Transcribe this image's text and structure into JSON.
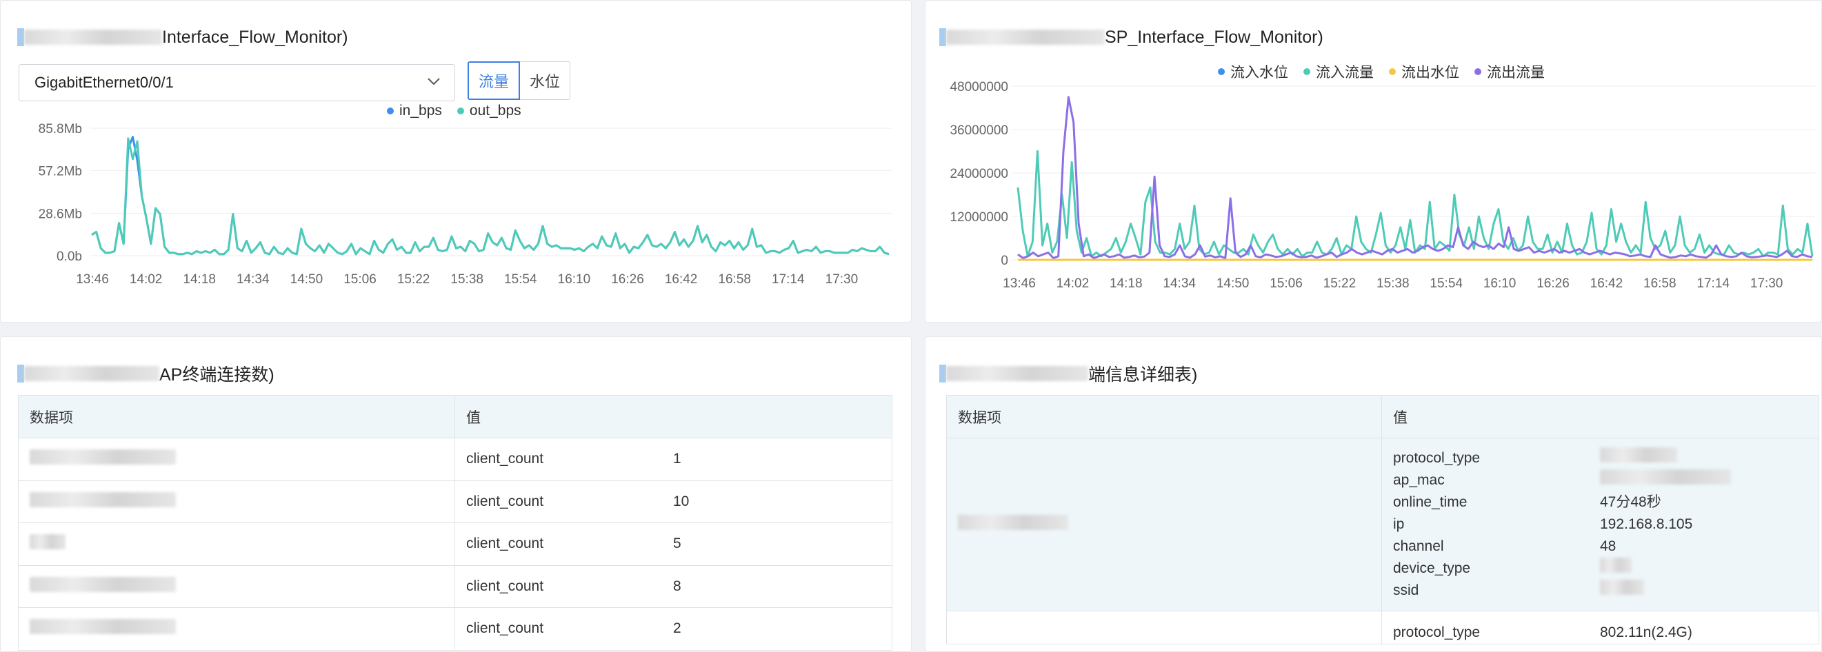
{
  "panels": {
    "traffic": {
      "title_suffix": "Interface_Flow_Monitor)",
      "interface_select": "GigabitEthernet0/0/1",
      "toggle_traffic": "流量",
      "toggle_waterline": "水位",
      "legend": [
        "in_bps",
        "out_bps"
      ],
      "colors": {
        "in_bps": "#3e8ef0",
        "out_bps": "#4ecbb6"
      }
    },
    "ssp": {
      "title_suffix": "SP_Interface_Flow_Monitor)",
      "legend": [
        "流入水位",
        "流入流量",
        "流出水位",
        "流出流量"
      ],
      "colors": {
        "流入水位": "#3e8ef0",
        "流入流量": "#4ecbb6",
        "流出水位": "#f5c842",
        "流出流量": "#8b6ee8"
      }
    },
    "ap_clients": {
      "title_suffix": "AP终端连接数)",
      "headers": [
        "数据项",
        "值"
      ],
      "rows": [
        {
          "key": "client_count",
          "value": "1"
        },
        {
          "key": "client_count",
          "value": "10"
        },
        {
          "key": "client_count",
          "value": "5"
        },
        {
          "key": "client_count",
          "value": "8"
        },
        {
          "key": "client_count",
          "value": "2"
        }
      ]
    },
    "terminal_detail": {
      "title_suffix": "端信息详细表)",
      "headers": [
        "数据项",
        "值"
      ],
      "record1": {
        "keys": [
          "protocol_type",
          "ap_mac",
          "online_time",
          "ip",
          "channel",
          "device_type",
          "ssid"
        ],
        "values": [
          "",
          "",
          "47分48秒",
          "192.168.8.105",
          "48",
          "",
          ""
        ]
      },
      "record2": {
        "keys": [
          "protocol_type"
        ],
        "values": [
          "802.11n(2.4G)"
        ]
      }
    }
  },
  "chart_data": [
    {
      "type": "line",
      "title": "",
      "y_ticks": [
        "0.0b",
        "28.6Mb",
        "57.2Mb",
        "85.8Mb"
      ],
      "ylim": [
        0,
        85.8
      ],
      "x_ticks": [
        "13:46",
        "14:02",
        "14:18",
        "14:34",
        "14:50",
        "15:06",
        "15:22",
        "15:38",
        "15:54",
        "16:10",
        "16:26",
        "16:42",
        "16:58",
        "17:14",
        "17:30"
      ],
      "series": [
        {
          "name": "in_bps",
          "values": [
            14,
            16,
            5,
            2,
            2,
            3,
            22,
            8,
            72,
            80,
            64,
            40,
            25,
            8,
            32,
            28,
            6,
            2,
            2,
            1,
            1,
            2,
            1,
            3,
            2,
            3,
            2,
            4,
            1,
            1,
            4,
            28,
            5,
            3,
            10,
            2,
            5,
            9,
            2,
            1,
            6,
            2,
            1,
            5,
            2,
            1,
            18,
            8,
            5,
            3,
            7,
            2,
            8,
            5,
            2,
            1,
            3,
            8,
            1,
            5,
            3,
            1,
            10,
            4,
            2,
            8,
            11,
            4,
            6,
            2,
            2,
            9,
            3,
            6,
            6,
            12,
            4,
            3,
            4,
            13,
            5,
            6,
            3,
            10,
            8,
            3,
            4,
            15,
            9,
            7,
            12,
            5,
            4,
            17,
            10,
            5,
            7,
            4,
            8,
            20,
            8,
            6,
            7,
            5,
            5,
            5,
            4,
            5,
            3,
            6,
            8,
            5,
            13,
            7,
            6,
            15,
            5,
            8,
            2,
            6,
            5,
            9,
            14,
            7,
            6,
            8,
            5,
            9,
            16,
            7,
            11,
            6,
            10,
            20,
            9,
            14,
            6,
            3,
            9,
            7,
            10,
            5,
            9,
            4,
            7,
            18,
            6,
            7,
            2,
            3,
            3,
            2,
            4,
            5,
            10,
            2,
            3,
            4,
            3,
            6,
            2,
            3,
            3,
            2,
            2,
            2,
            2,
            4,
            3,
            5,
            4,
            3,
            3,
            6,
            2,
            1
          ]
        },
        {
          "name": "out_bps",
          "values": [
            14,
            16,
            5,
            2,
            2,
            3,
            22,
            8,
            79,
            65,
            77,
            40,
            25,
            8,
            32,
            28,
            6,
            2,
            2,
            1,
            1,
            2,
            1,
            3,
            2,
            3,
            2,
            4,
            1,
            1,
            4,
            28,
            5,
            3,
            10,
            2,
            5,
            9,
            2,
            1,
            6,
            2,
            1,
            5,
            2,
            1,
            18,
            8,
            5,
            3,
            7,
            2,
            8,
            5,
            2,
            1,
            3,
            8,
            1,
            5,
            3,
            1,
            10,
            4,
            2,
            8,
            11,
            4,
            6,
            2,
            2,
            9,
            3,
            6,
            6,
            12,
            4,
            3,
            4,
            13,
            5,
            6,
            3,
            10,
            8,
            3,
            4,
            15,
            9,
            7,
            12,
            5,
            4,
            17,
            10,
            5,
            7,
            4,
            8,
            20,
            8,
            6,
            7,
            5,
            5,
            5,
            4,
            5,
            3,
            6,
            8,
            5,
            13,
            7,
            6,
            15,
            5,
            8,
            2,
            6,
            5,
            9,
            14,
            7,
            6,
            8,
            5,
            9,
            16,
            7,
            11,
            6,
            10,
            20,
            9,
            14,
            6,
            3,
            9,
            7,
            10,
            5,
            9,
            4,
            7,
            18,
            6,
            7,
            2,
            3,
            3,
            2,
            4,
            5,
            10,
            2,
            3,
            4,
            3,
            6,
            2,
            3,
            3,
            2,
            2,
            2,
            2,
            4,
            3,
            5,
            4,
            3,
            3,
            6,
            2,
            1
          ]
        }
      ]
    },
    {
      "type": "line",
      "title": "",
      "y_ticks": [
        "0",
        "12000000",
        "24000000",
        "36000000",
        "48000000"
      ],
      "ylim": [
        0,
        48000000
      ],
      "x_ticks": [
        "13:46",
        "14:02",
        "14:18",
        "14:34",
        "14:50",
        "15:06",
        "15:22",
        "15:38",
        "15:54",
        "16:10",
        "16:26",
        "16:42",
        "16:58",
        "17:14",
        "17:30"
      ],
      "series": [
        {
          "name": "流入水位",
          "values": [
            0,
            0,
            0,
            0,
            0,
            0,
            0,
            0,
            0,
            0
          ]
        },
        {
          "name": "流入流量",
          "values": [
            20000000,
            8000000,
            1000000,
            5000000,
            30000000,
            4000000,
            10000000,
            2000000,
            5000000,
            18000000,
            6000000,
            27000000,
            8000000,
            2000000,
            6000000,
            1000000,
            2000000,
            1000000,
            2000000,
            3000000,
            6000000,
            2000000,
            5000000,
            10000000,
            6000000,
            1500000,
            16000000,
            20000000,
            5000000,
            2000000,
            2000000,
            1500000,
            3000000,
            10000000,
            3000000,
            5000000,
            15000000,
            3000000,
            1500000,
            2000000,
            5000000,
            1500000,
            4000000,
            3000000,
            2000000,
            2000000,
            3000000,
            1500000,
            7000000,
            4000000,
            2000000,
            5000000,
            7000000,
            3000000,
            1500000,
            3000000,
            1500000,
            3000000,
            1000000,
            2000000,
            2000000,
            5000000,
            2000000,
            1500000,
            3000000,
            6000000,
            1500000,
            4000000,
            3000000,
            12000000,
            5000000,
            3000000,
            2000000,
            7000000,
            13000000,
            4000000,
            2000000,
            4000000,
            9000000,
            3000000,
            11000000,
            2000000,
            4000000,
            3000000,
            16000000,
            3000000,
            5000000,
            4000000,
            2500000,
            18000000,
            7000000,
            4000000,
            9000000,
            3000000,
            12000000,
            6000000,
            3000000,
            10000000,
            14000000,
            5000000,
            3000000,
            6000000,
            2500000,
            4000000,
            12000000,
            5000000,
            3000000,
            3000000,
            7000000,
            2000000,
            5000000,
            2000000,
            10000000,
            4000000,
            1500000,
            2000000,
            5000000,
            13000000,
            3000000,
            1500000,
            4000000,
            14000000,
            5000000,
            10000000,
            5000000,
            2000000,
            4000000,
            2000000,
            16000000,
            6000000,
            3000000,
            4000000,
            8000000,
            2000000,
            4000000,
            12000000,
            4000000,
            2000000,
            3000000,
            7000000,
            2000000,
            4000000,
            2000000,
            1500000,
            1500000,
            4000000,
            2000000,
            1500000,
            2000000,
            1500000,
            2000000,
            3000000,
            1000000,
            2000000,
            2000000,
            1500000,
            15000000,
            3000000,
            1500000,
            3000000,
            2000000,
            10000000,
            1000000
          ]
        },
        {
          "name": "流出水位",
          "values": [
            0,
            0,
            0,
            0,
            0,
            0,
            0,
            0,
            0,
            0
          ]
        },
        {
          "name": "流出流量",
          "values": [
            1500000,
            500000,
            1000000,
            2000000,
            1000000,
            1500000,
            2000000,
            500000,
            1000000,
            30000000,
            45000000,
            38000000,
            10000000,
            1000000,
            1500000,
            500000,
            1000000,
            1500000,
            800000,
            1000000,
            1500000,
            600000,
            800000,
            1200000,
            700000,
            900000,
            2000000,
            23000000,
            4000000,
            1000000,
            800000,
            1500000,
            4000000,
            1000000,
            600000,
            1500000,
            4000000,
            900000,
            1200000,
            700000,
            1000000,
            500000,
            17000000,
            2000000,
            800000,
            1500000,
            4000000,
            1000000,
            700000,
            1500000,
            1200000,
            800000,
            1000000,
            1500000,
            2000000,
            1000000,
            700000,
            800000,
            1200000,
            600000,
            1000000,
            1500000,
            2000000,
            800000,
            1500000,
            2000000,
            3000000,
            2000000,
            1500000,
            2000000,
            2500000,
            2000000,
            1500000,
            2500000,
            3000000,
            2000000,
            2500000,
            3000000,
            2000000,
            2500000,
            3500000,
            4000000,
            3000000,
            2500000,
            3000000,
            4000000,
            3500000,
            9000000,
            4000000,
            3000000,
            5000000,
            4000000,
            3500000,
            4000000,
            3000000,
            4500000,
            3500000,
            9000000,
            3000000,
            2500000,
            3000000,
            3500000,
            2000000,
            2500000,
            2000000,
            2500000,
            3000000,
            2000000,
            2500000,
            2000000,
            2500000,
            3000000,
            2000000,
            1500000,
            2000000,
            2500000,
            2000000,
            1500000,
            2000000,
            1800000,
            1500000,
            1000000,
            1200000,
            1500000,
            1000000,
            800000,
            4000000,
            1500000,
            1000000,
            600000,
            800000,
            1200000,
            1000000,
            1500000,
            1000000,
            800000,
            600000,
            1500000,
            4000000,
            1500000,
            1000000,
            800000,
            1000000,
            2000000,
            1000000,
            700000,
            800000,
            1000000,
            1200000,
            1000000,
            800000,
            1500000,
            2500000,
            1000000,
            800000,
            1500000,
            1000000,
            800000
          ]
        }
      ]
    }
  ]
}
